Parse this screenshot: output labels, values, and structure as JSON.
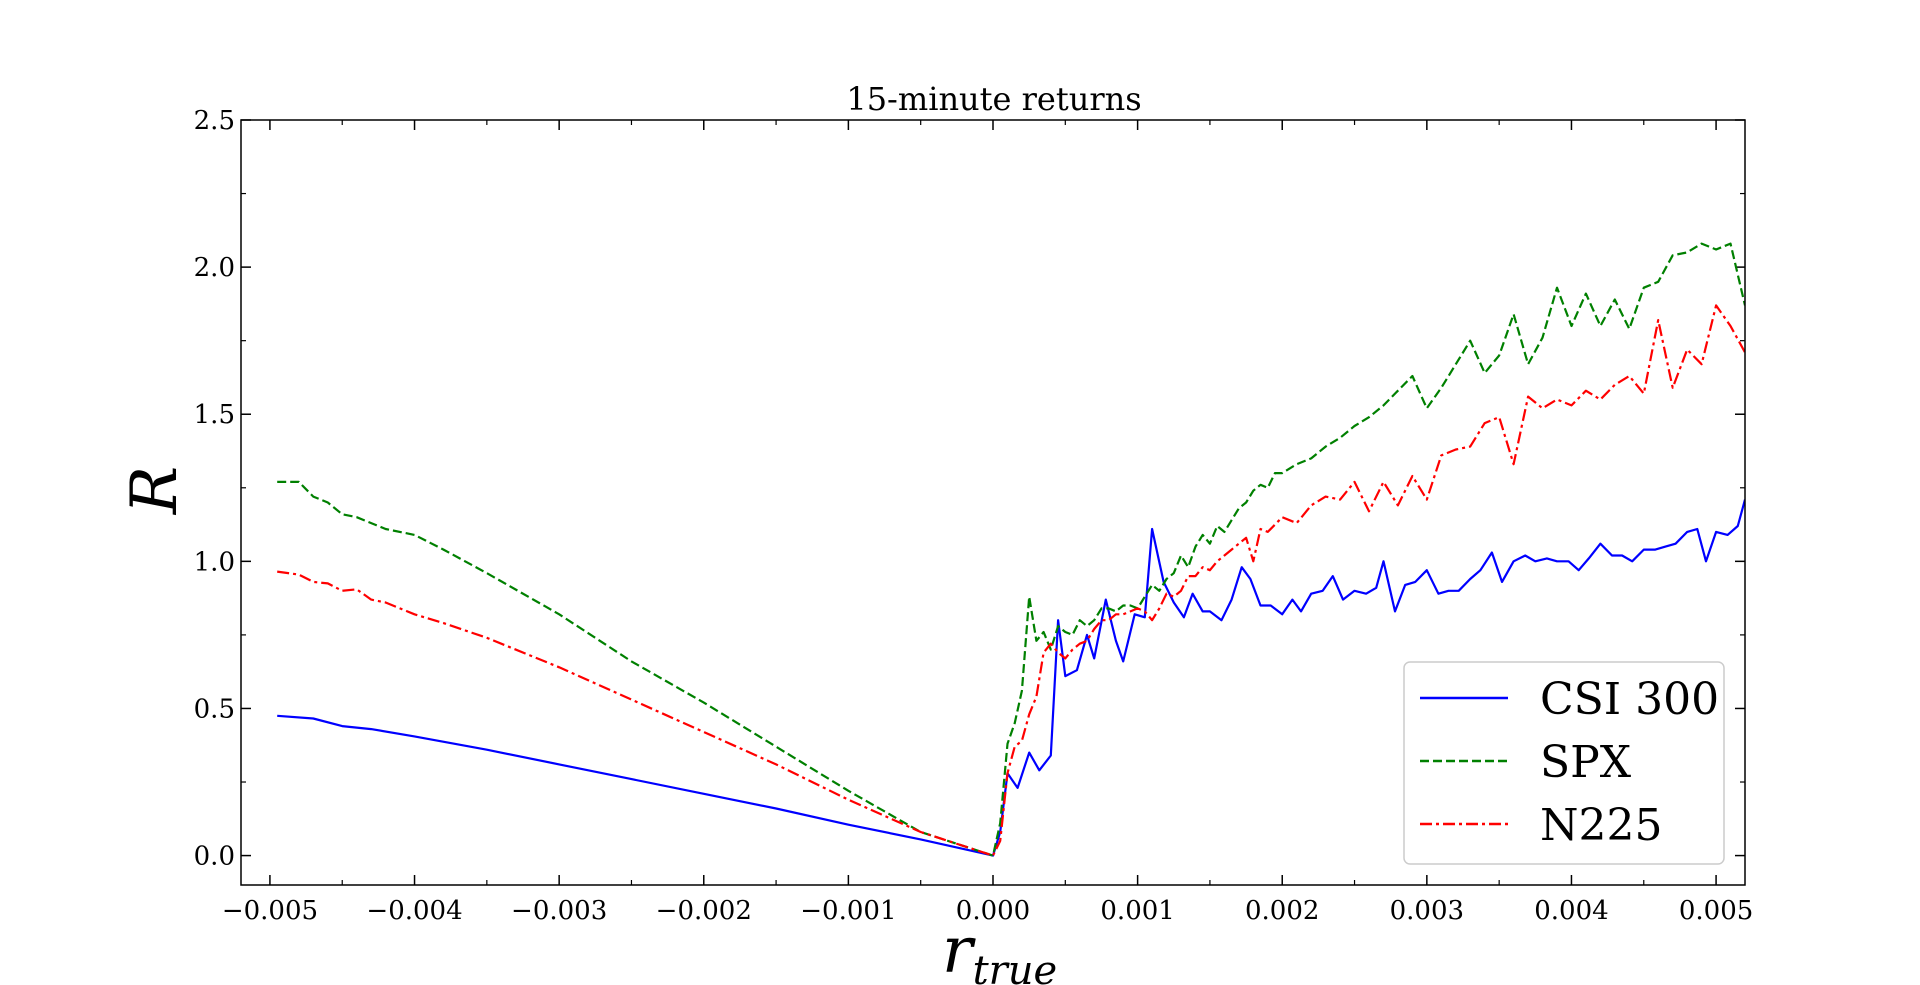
{
  "chart_data": {
    "type": "line",
    "title": "15-minute returns",
    "xlabel": "r",
    "xlabel_sub": "true",
    "ylabel": "R",
    "xlim": [
      -0.0052,
      0.0052
    ],
    "ylim": [
      -0.1,
      2.5
    ],
    "x_ticks": [
      -0.005,
      -0.004,
      -0.003,
      -0.002,
      -0.001,
      0.0,
      0.001,
      0.002,
      0.003,
      0.004,
      0.005
    ],
    "x_tick_labels": [
      "−0.005",
      "−0.004",
      "−0.003",
      "−0.002",
      "−0.001",
      "0.000",
      "0.001",
      "0.002",
      "0.003",
      "0.004",
      "0.005"
    ],
    "y_ticks": [
      0.0,
      0.5,
      1.0,
      1.5,
      2.0,
      2.5
    ],
    "y_tick_labels": [
      "0.0",
      "0.5",
      "1.0",
      "1.5",
      "2.0",
      "2.5"
    ],
    "grid": false,
    "legend_position": "bottom-right",
    "series": [
      {
        "name": "CSI 300",
        "color": "#0000ff",
        "dash": "solid",
        "points": [
          [
            -0.00495,
            0.475
          ],
          [
            -0.0047,
            0.466
          ],
          [
            -0.0045,
            0.44
          ],
          [
            -0.0043,
            0.43
          ],
          [
            -0.004,
            0.405
          ],
          [
            -0.0035,
            0.36
          ],
          [
            -0.003,
            0.31
          ],
          [
            -0.0025,
            0.26
          ],
          [
            -0.002,
            0.21
          ],
          [
            -0.0015,
            0.16
          ],
          [
            -0.001,
            0.105
          ],
          [
            -0.0005,
            0.055
          ],
          [
            0.0,
            0.0
          ],
          [
            5e-05,
            0.08
          ],
          [
            0.0001,
            0.28
          ],
          [
            0.00017,
            0.23
          ],
          [
            0.00025,
            0.35
          ],
          [
            0.00032,
            0.29
          ],
          [
            0.0004,
            0.34
          ],
          [
            0.00045,
            0.8
          ],
          [
            0.0005,
            0.61
          ],
          [
            0.00058,
            0.63
          ],
          [
            0.00065,
            0.75
          ],
          [
            0.0007,
            0.67
          ],
          [
            0.00078,
            0.87
          ],
          [
            0.00085,
            0.73
          ],
          [
            0.0009,
            0.66
          ],
          [
            0.00098,
            0.82
          ],
          [
            0.00105,
            0.81
          ],
          [
            0.0011,
            1.11
          ],
          [
            0.00118,
            0.93
          ],
          [
            0.00125,
            0.86
          ],
          [
            0.00132,
            0.81
          ],
          [
            0.00138,
            0.89
          ],
          [
            0.00145,
            0.83
          ],
          [
            0.0015,
            0.83
          ],
          [
            0.00158,
            0.8
          ],
          [
            0.00165,
            0.87
          ],
          [
            0.00172,
            0.98
          ],
          [
            0.00178,
            0.94
          ],
          [
            0.00185,
            0.85
          ],
          [
            0.00192,
            0.85
          ],
          [
            0.002,
            0.82
          ],
          [
            0.00207,
            0.87
          ],
          [
            0.00213,
            0.83
          ],
          [
            0.0022,
            0.89
          ],
          [
            0.00228,
            0.9
          ],
          [
            0.00235,
            0.95
          ],
          [
            0.00242,
            0.87
          ],
          [
            0.0025,
            0.9
          ],
          [
            0.00258,
            0.89
          ],
          [
            0.00265,
            0.91
          ],
          [
            0.0027,
            1.0
          ],
          [
            0.00278,
            0.83
          ],
          [
            0.00285,
            0.92
          ],
          [
            0.00292,
            0.93
          ],
          [
            0.003,
            0.97
          ],
          [
            0.00308,
            0.89
          ],
          [
            0.00315,
            0.9
          ],
          [
            0.00322,
            0.9
          ],
          [
            0.0033,
            0.94
          ],
          [
            0.00337,
            0.97
          ],
          [
            0.00345,
            1.03
          ],
          [
            0.00352,
            0.93
          ],
          [
            0.0036,
            1.0
          ],
          [
            0.00368,
            1.02
          ],
          [
            0.00375,
            1.0
          ],
          [
            0.00383,
            1.01
          ],
          [
            0.0039,
            1.0
          ],
          [
            0.00398,
            1.0
          ],
          [
            0.00405,
            0.97
          ],
          [
            0.00412,
            1.01
          ],
          [
            0.0042,
            1.06
          ],
          [
            0.00428,
            1.02
          ],
          [
            0.00435,
            1.02
          ],
          [
            0.00442,
            1.0
          ],
          [
            0.0045,
            1.04
          ],
          [
            0.00458,
            1.04
          ],
          [
            0.00465,
            1.05
          ],
          [
            0.00472,
            1.06
          ],
          [
            0.0048,
            1.1
          ],
          [
            0.00487,
            1.11
          ],
          [
            0.00493,
            1.0
          ],
          [
            0.005,
            1.1
          ],
          [
            0.00508,
            1.09
          ],
          [
            0.00515,
            1.12
          ],
          [
            0.0052,
            1.21
          ]
        ]
      },
      {
        "name": "SPX",
        "color": "#008000",
        "dash": "dashed",
        "points": [
          [
            -0.00495,
            1.27
          ],
          [
            -0.0048,
            1.27
          ],
          [
            -0.0047,
            1.22
          ],
          [
            -0.0046,
            1.2
          ],
          [
            -0.0045,
            1.16
          ],
          [
            -0.0044,
            1.15
          ],
          [
            -0.0043,
            1.13
          ],
          [
            -0.0042,
            1.11
          ],
          [
            -0.004,
            1.09
          ],
          [
            -0.0038,
            1.04
          ],
          [
            -0.0035,
            0.96
          ],
          [
            -0.003,
            0.82
          ],
          [
            -0.0025,
            0.66
          ],
          [
            -0.002,
            0.52
          ],
          [
            -0.0015,
            0.37
          ],
          [
            -0.001,
            0.22
          ],
          [
            -0.0005,
            0.08
          ],
          [
            0.0,
            0.0
          ],
          [
            5e-05,
            0.11
          ],
          [
            0.0001,
            0.38
          ],
          [
            0.00015,
            0.45
          ],
          [
            0.0002,
            0.56
          ],
          [
            0.00025,
            0.88
          ],
          [
            0.0003,
            0.73
          ],
          [
            0.00035,
            0.76
          ],
          [
            0.0004,
            0.7
          ],
          [
            0.00045,
            0.78
          ],
          [
            0.0005,
            0.76
          ],
          [
            0.00055,
            0.75
          ],
          [
            0.0006,
            0.8
          ],
          [
            0.00065,
            0.78
          ],
          [
            0.0007,
            0.8
          ],
          [
            0.00075,
            0.84
          ],
          [
            0.0008,
            0.84
          ],
          [
            0.00085,
            0.83
          ],
          [
            0.0009,
            0.85
          ],
          [
            0.00095,
            0.85
          ],
          [
            0.001,
            0.84
          ],
          [
            0.00105,
            0.88
          ],
          [
            0.0011,
            0.92
          ],
          [
            0.00115,
            0.9
          ],
          [
            0.0012,
            0.94
          ],
          [
            0.00125,
            0.96
          ],
          [
            0.0013,
            1.02
          ],
          [
            0.00135,
            0.98
          ],
          [
            0.0014,
            1.05
          ],
          [
            0.00145,
            1.09
          ],
          [
            0.0015,
            1.06
          ],
          [
            0.00155,
            1.12
          ],
          [
            0.0016,
            1.1
          ],
          [
            0.00165,
            1.14
          ],
          [
            0.0017,
            1.18
          ],
          [
            0.00175,
            1.2
          ],
          [
            0.0018,
            1.24
          ],
          [
            0.00185,
            1.26
          ],
          [
            0.0019,
            1.25
          ],
          [
            0.00195,
            1.3
          ],
          [
            0.002,
            1.3
          ],
          [
            0.0021,
            1.33
          ],
          [
            0.0022,
            1.35
          ],
          [
            0.0023,
            1.39
          ],
          [
            0.0024,
            1.42
          ],
          [
            0.0025,
            1.46
          ],
          [
            0.0026,
            1.49
          ],
          [
            0.0027,
            1.53
          ],
          [
            0.0028,
            1.58
          ],
          [
            0.0029,
            1.63
          ],
          [
            0.003,
            1.52
          ],
          [
            0.0031,
            1.59
          ],
          [
            0.0032,
            1.67
          ],
          [
            0.0033,
            1.75
          ],
          [
            0.0034,
            1.64
          ],
          [
            0.0035,
            1.7
          ],
          [
            0.0036,
            1.84
          ],
          [
            0.0037,
            1.67
          ],
          [
            0.0038,
            1.76
          ],
          [
            0.0039,
            1.93
          ],
          [
            0.004,
            1.8
          ],
          [
            0.0041,
            1.91
          ],
          [
            0.0042,
            1.8
          ],
          [
            0.0043,
            1.89
          ],
          [
            0.0044,
            1.79
          ],
          [
            0.0045,
            1.93
          ],
          [
            0.0046,
            1.95
          ],
          [
            0.0047,
            2.04
          ],
          [
            0.0048,
            2.05
          ],
          [
            0.0049,
            2.08
          ],
          [
            0.005,
            2.06
          ],
          [
            0.0051,
            2.08
          ],
          [
            0.0052,
            1.87
          ]
        ]
      },
      {
        "name": "N225",
        "color": "#ff0000",
        "dash": "dashdot",
        "points": [
          [
            -0.00495,
            0.965
          ],
          [
            -0.0048,
            0.955
          ],
          [
            -0.0047,
            0.93
          ],
          [
            -0.0046,
            0.925
          ],
          [
            -0.0045,
            0.9
          ],
          [
            -0.0044,
            0.905
          ],
          [
            -0.0043,
            0.87
          ],
          [
            -0.0042,
            0.86
          ],
          [
            -0.004,
            0.82
          ],
          [
            -0.0038,
            0.79
          ],
          [
            -0.0035,
            0.74
          ],
          [
            -0.003,
            0.64
          ],
          [
            -0.0025,
            0.53
          ],
          [
            -0.002,
            0.42
          ],
          [
            -0.0015,
            0.31
          ],
          [
            -0.001,
            0.19
          ],
          [
            -0.0005,
            0.08
          ],
          [
            0.0,
            0.0
          ],
          [
            5e-05,
            0.05
          ],
          [
            0.0001,
            0.28
          ],
          [
            0.00015,
            0.37
          ],
          [
            0.0002,
            0.39
          ],
          [
            0.00025,
            0.48
          ],
          [
            0.0003,
            0.54
          ],
          [
            0.00035,
            0.69
          ],
          [
            0.0004,
            0.72
          ],
          [
            0.00045,
            0.69
          ],
          [
            0.0005,
            0.67
          ],
          [
            0.00055,
            0.7
          ],
          [
            0.0006,
            0.72
          ],
          [
            0.00065,
            0.73
          ],
          [
            0.0007,
            0.77
          ],
          [
            0.00075,
            0.8
          ],
          [
            0.0008,
            0.8
          ],
          [
            0.00085,
            0.82
          ],
          [
            0.0009,
            0.82
          ],
          [
            0.00095,
            0.83
          ],
          [
            0.001,
            0.84
          ],
          [
            0.00105,
            0.83
          ],
          [
            0.0011,
            0.8
          ],
          [
            0.00115,
            0.84
          ],
          [
            0.0012,
            0.89
          ],
          [
            0.00125,
            0.88
          ],
          [
            0.0013,
            0.9
          ],
          [
            0.00135,
            0.95
          ],
          [
            0.0014,
            0.95
          ],
          [
            0.00145,
            0.98
          ],
          [
            0.0015,
            0.97
          ],
          [
            0.00155,
            1.0
          ],
          [
            0.0016,
            1.02
          ],
          [
            0.00165,
            1.04
          ],
          [
            0.0017,
            1.06
          ],
          [
            0.00175,
            1.08
          ],
          [
            0.0018,
            1.0
          ],
          [
            0.00185,
            1.11
          ],
          [
            0.0019,
            1.1
          ],
          [
            0.002,
            1.15
          ],
          [
            0.0021,
            1.13
          ],
          [
            0.0022,
            1.19
          ],
          [
            0.0023,
            1.22
          ],
          [
            0.0024,
            1.21
          ],
          [
            0.0025,
            1.27
          ],
          [
            0.0026,
            1.17
          ],
          [
            0.0027,
            1.27
          ],
          [
            0.0028,
            1.19
          ],
          [
            0.0029,
            1.29
          ],
          [
            0.003,
            1.21
          ],
          [
            0.0031,
            1.36
          ],
          [
            0.0032,
            1.38
          ],
          [
            0.0033,
            1.39
          ],
          [
            0.0034,
            1.47
          ],
          [
            0.0035,
            1.49
          ],
          [
            0.0036,
            1.33
          ],
          [
            0.0037,
            1.56
          ],
          [
            0.0038,
            1.52
          ],
          [
            0.0039,
            1.55
          ],
          [
            0.004,
            1.53
          ],
          [
            0.0041,
            1.58
          ],
          [
            0.0042,
            1.55
          ],
          [
            0.0043,
            1.6
          ],
          [
            0.0044,
            1.63
          ],
          [
            0.0045,
            1.57
          ],
          [
            0.0046,
            1.82
          ],
          [
            0.0047,
            1.59
          ],
          [
            0.0048,
            1.72
          ],
          [
            0.0049,
            1.67
          ],
          [
            0.005,
            1.87
          ],
          [
            0.0051,
            1.8
          ],
          [
            0.0052,
            1.71
          ]
        ]
      }
    ]
  }
}
